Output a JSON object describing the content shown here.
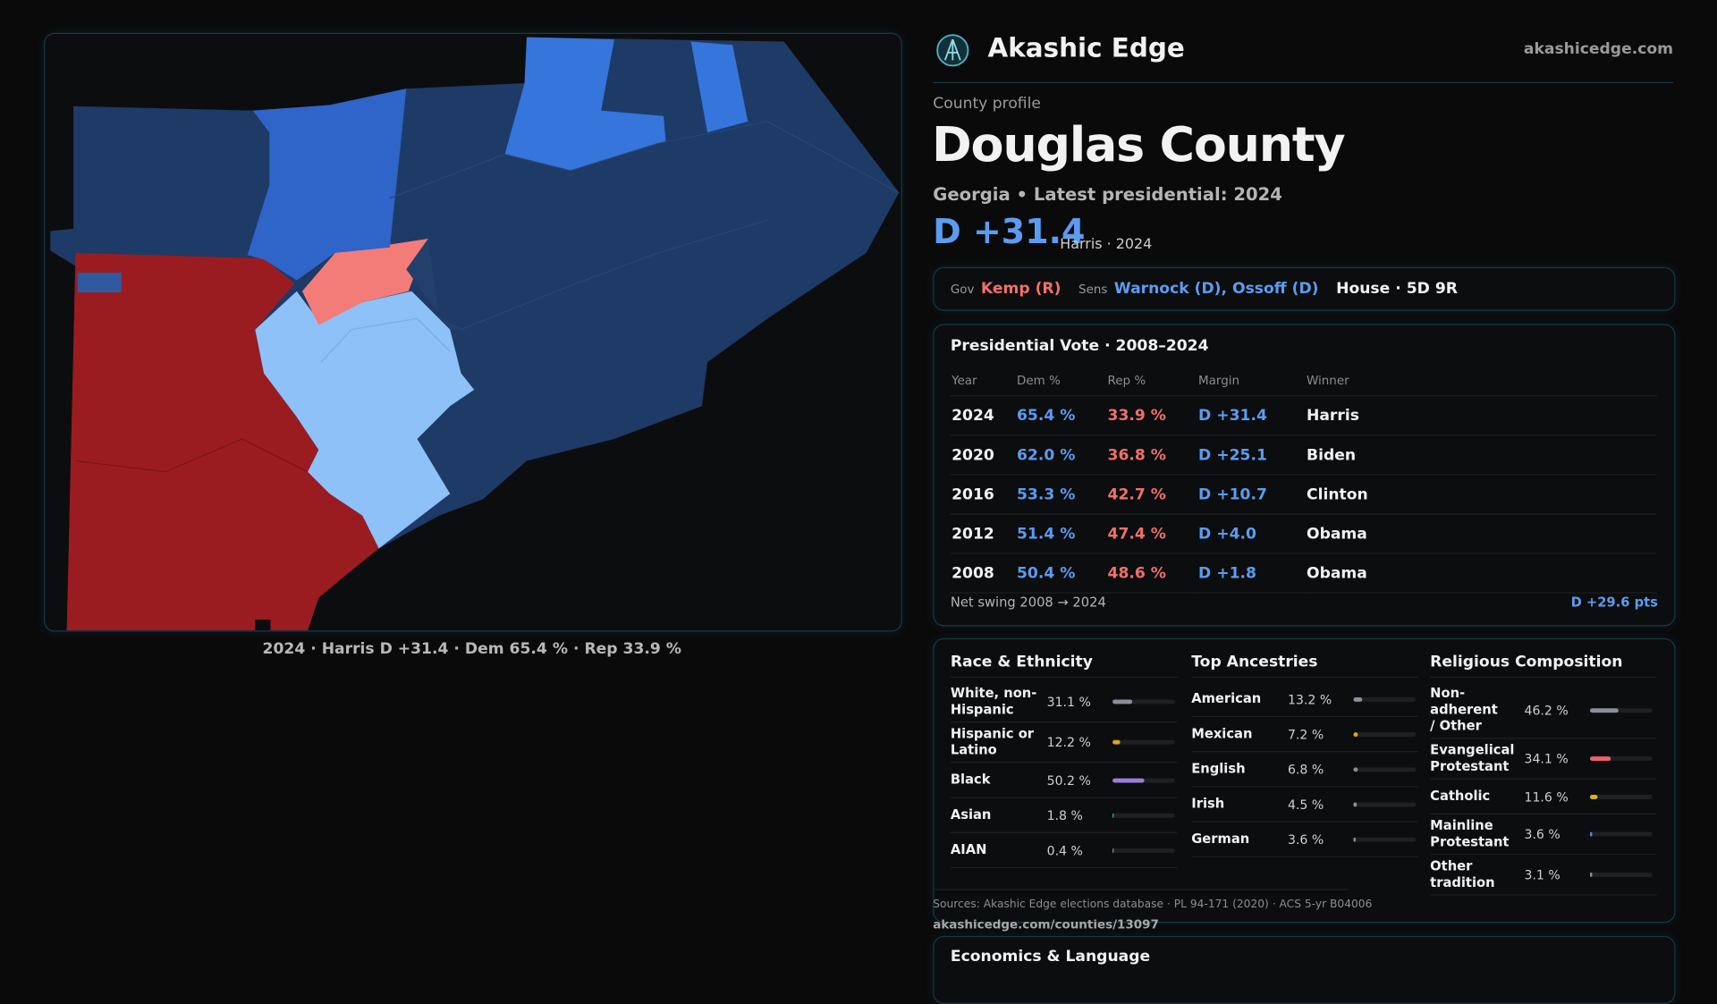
{
  "header": {
    "brand": "Akashic Edge",
    "site": "akashicedge.com"
  },
  "profile": {
    "kicker": "County profile",
    "name": "Douglas County",
    "subtitle": "Georgia • Latest presidential: 2024",
    "margin": "D +31.4",
    "margin_note": "Harris · 2024"
  },
  "officials": {
    "gov_label": "Gov",
    "gov": "Kemp (R)",
    "sens_label": "Sens",
    "sens": "Warnock (D), Ossoff (D)",
    "house": "House · 5D 9R"
  },
  "votes": {
    "title": "Presidential Vote · 2008–2024",
    "columns": [
      "Year",
      "Dem %",
      "Rep %",
      "Margin",
      "Winner"
    ],
    "rows": [
      [
        "2024",
        "65.4 %",
        "33.9 %",
        "D +31.4",
        "Harris"
      ],
      [
        "2020",
        "62.0 %",
        "36.8 %",
        "D +25.1",
        "Biden"
      ],
      [
        "2016",
        "53.3 %",
        "42.7 %",
        "D +10.7",
        "Clinton"
      ],
      [
        "2012",
        "51.4 %",
        "47.4 %",
        "D +4.0",
        "Obama"
      ],
      [
        "2008",
        "50.4 %",
        "48.6 %",
        "D +1.8",
        "Obama"
      ]
    ],
    "swing_label": "Net swing 2008 → 2024",
    "swing": "D +29.6 pts"
  },
  "demographics": [
    {
      "title": "Race & Ethnicity",
      "rows": [
        {
          "name": "White, non-Hispanic",
          "value": "31.1 %",
          "color": "#8a8f99"
        },
        {
          "name": "Hispanic or Latino",
          "value": "12.2 %",
          "color": "#e0a21a"
        },
        {
          "name": "Black",
          "value": "50.2 %",
          "color": "#9a7ee0"
        },
        {
          "name": "Asian",
          "value": "1.8 %",
          "color": "#3fb27f"
        },
        {
          "name": "AIAN",
          "value": "0.4 %",
          "color": "#8a8f99"
        }
      ]
    },
    {
      "title": "Top Ancestries",
      "rows": [
        {
          "name": "American",
          "value": "13.2 %",
          "color": "#8a8f99"
        },
        {
          "name": "Mexican",
          "value": "7.2 %",
          "color": "#e0a21a"
        },
        {
          "name": "English",
          "value": "6.8 %",
          "color": "#8a8f99"
        },
        {
          "name": "Irish",
          "value": "4.5 %",
          "color": "#8a8f99"
        },
        {
          "name": "German",
          "value": "3.6 %",
          "color": "#8a8f99"
        }
      ]
    },
    {
      "title": "Religious Composition",
      "rows": [
        {
          "name": "Non-adherent / Other",
          "value": "46.2 %",
          "color": "#8a8f99"
        },
        {
          "name": "Evangelical Protestant",
          "value": "34.1 %",
          "color": "#f0606a"
        },
        {
          "name": "Catholic",
          "value": "11.6 %",
          "color": "#e0b21a"
        },
        {
          "name": "Mainline Protestant",
          "value": "3.6 %",
          "color": "#4a8ce8"
        },
        {
          "name": "Other tradition",
          "value": "3.1 %",
          "color": "#8a8f99"
        }
      ]
    }
  ],
  "sources": "Sources: Akashic Edge elections database · PL 94-171 (2020) · ACS 5-yr B04006",
  "url": "akashicedge.com/counties/13097",
  "economics": {
    "title": "Economics & Language"
  },
  "map": {
    "caption": "2024 · Harris D +31.4 · Dem 65.4 % · Rep 33.9 %"
  }
}
